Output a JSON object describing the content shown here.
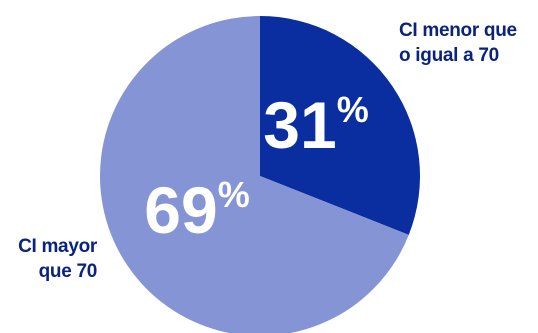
{
  "chart_data": {
    "type": "pie",
    "slices": [
      {
        "label_lines": [
          "CI menor que",
          "o igual a 70"
        ],
        "value": 31,
        "value_text": "31",
        "unit": "%",
        "color": "#0a2ea0"
      },
      {
        "label_lines": [
          "CI mayor",
          "que 70"
        ],
        "value": 69,
        "value_text": "69",
        "unit": "%",
        "color": "#8494d4"
      }
    ],
    "label_color": "#0a237f"
  }
}
